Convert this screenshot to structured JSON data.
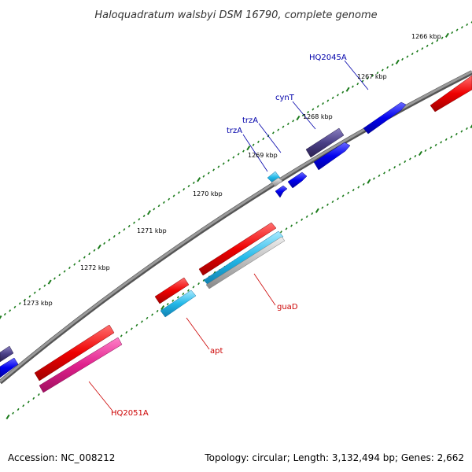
{
  "title": "Haloquadratum walsbyi DSM 16790, complete genome",
  "footer": {
    "accession": "Accession: NC_008212",
    "summary": "Topology: circular; Length: 3,132,494 bp; Genes: 2,662"
  },
  "colors": {
    "backbone": "#808080",
    "tick": "#1a7a1a",
    "forward_gene": "#0000ee",
    "forward_gene_dark": "#4a3f86",
    "reverse_gene": "#ee0000",
    "reverse_cyan": "#22b8e8",
    "reverse_magenta": "#e0208c",
    "label_forward": "#0000aa",
    "label_reverse": "#cc0000"
  },
  "kbp_labels": [
    {
      "kbp": 1266,
      "text": "1266 kbp"
    },
    {
      "kbp": 1267,
      "text": "1267 kbp"
    },
    {
      "kbp": 1268,
      "text": "1268 kbp"
    },
    {
      "kbp": 1269,
      "text": "1269 kbp"
    },
    {
      "kbp": 1270,
      "text": "1270 kbp"
    },
    {
      "kbp": 1271,
      "text": "1271 kbp"
    },
    {
      "kbp": 1272,
      "text": "1272 kbp"
    },
    {
      "kbp": 1273,
      "text": "1273 kbp"
    }
  ],
  "genes": [
    {
      "name": "HQ2045A",
      "strand": "forward",
      "label": "HQ2045A"
    },
    {
      "name": "cynT",
      "strand": "forward",
      "label": "cynT"
    },
    {
      "name": "trzA",
      "strand": "forward",
      "label": "trzA"
    },
    {
      "name": "trzA",
      "strand": "forward",
      "label": "trzA"
    },
    {
      "name": "guaD",
      "strand": "reverse",
      "label": "guaD"
    },
    {
      "name": "apt",
      "strand": "reverse",
      "label": "apt"
    },
    {
      "name": "HQ2051A",
      "strand": "reverse",
      "label": "HQ2051A"
    }
  ]
}
